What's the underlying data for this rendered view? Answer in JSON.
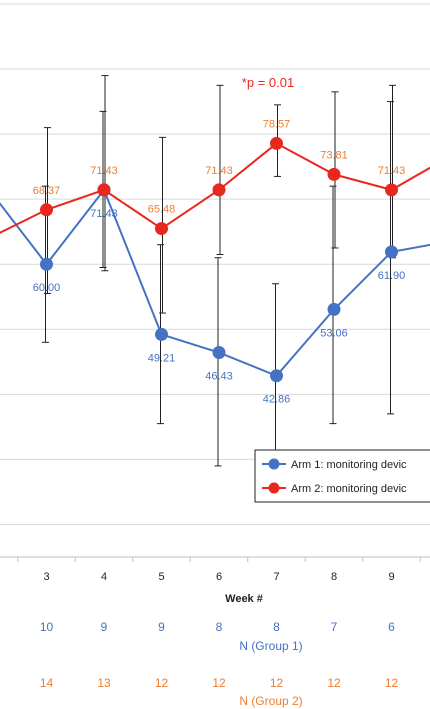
{
  "chart_data": {
    "type": "line",
    "x": [
      2,
      3,
      4,
      5,
      6,
      7,
      8,
      9,
      10
    ],
    "xticks_visible": [
      "3",
      "4",
      "5",
      "6",
      "7",
      "8",
      "9"
    ],
    "xlabel": "Week #",
    "annotation": "*p = 0.01",
    "series": [
      {
        "name": "Arm 1: monitoring devic",
        "color": "#4472C4",
        "values": [
          71.5,
          60.0,
          71.43,
          49.21,
          46.43,
          42.86,
          53.06,
          61.9,
          63.5
        ],
        "labels": [
          "",
          "60.00",
          "71.43",
          "49.21",
          "46.43",
          "42.86",
          "53.06",
          "61.90",
          ""
        ],
        "err_low": [
          null,
          48.0,
          59.5,
          35.5,
          29.0,
          28.0,
          35.5,
          37.0,
          null
        ],
        "err_high": [
          null,
          72.0,
          83.5,
          63.0,
          61.0,
          57.0,
          72.0,
          85.0,
          null
        ]
      },
      {
        "name": "Arm 2: monitoring devic",
        "color": "#E8281E",
        "label_color": "#ED7D31",
        "values": [
          64.0,
          68.37,
          71.43,
          65.48,
          71.43,
          78.57,
          73.81,
          71.43,
          76.5
        ],
        "labels": [
          "",
          "68.37",
          "71.43",
          "65.48",
          "71.43",
          "78.57",
          "73.81",
          "71.43",
          ""
        ],
        "err_low": [
          null,
          55.5,
          59.0,
          52.5,
          61.5,
          73.5,
          62.5,
          61.0,
          null
        ],
        "err_high": [
          null,
          81.0,
          89.0,
          79.5,
          87.5,
          84.5,
          86.5,
          87.5,
          null
        ]
      }
    ],
    "n_rows": [
      {
        "name": "N (Group 1)",
        "color": "#4472C4",
        "values": [
          "10",
          "9",
          "9",
          "8",
          "8",
          "7",
          "6"
        ]
      },
      {
        "name": "N (Group 2)",
        "color": "#ED7D31",
        "values": [
          "14",
          "13",
          "12",
          "12",
          "12",
          "12",
          "12"
        ]
      }
    ],
    "ylim": [
      15,
      100
    ],
    "grid": true,
    "legend_position": "bottom-right"
  }
}
